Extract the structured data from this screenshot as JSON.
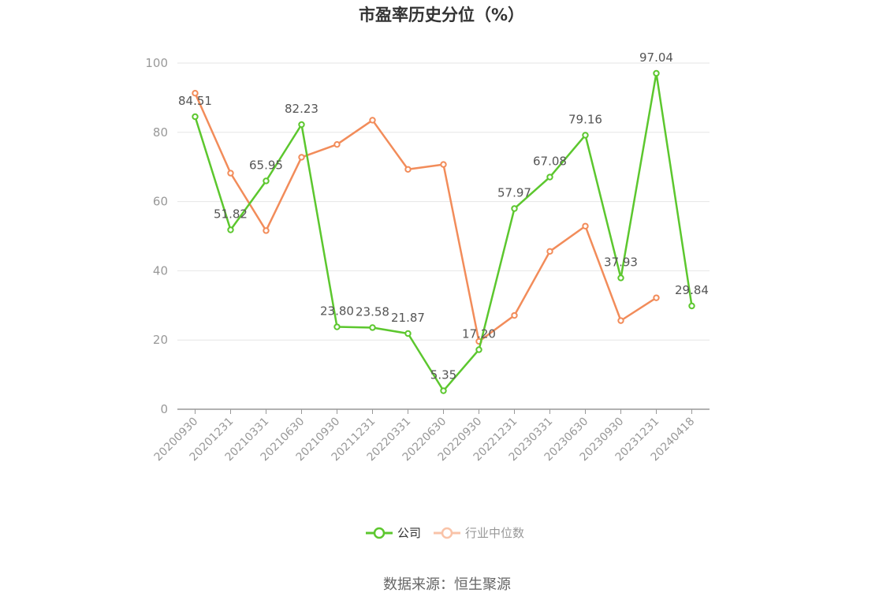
{
  "chart_data": {
    "type": "line",
    "title": "市盈率历史分位（%）",
    "categories": [
      "20200930",
      "20201231",
      "20210331",
      "20210630",
      "20210930",
      "20211231",
      "20220331",
      "20220630",
      "20220930",
      "20221231",
      "20230331",
      "20230630",
      "20230930",
      "20231231",
      "20240418"
    ],
    "series": [
      {
        "name": "公司",
        "color": "#5cc72e",
        "values": [
          84.51,
          51.82,
          65.95,
          82.23,
          23.8,
          23.58,
          21.87,
          5.35,
          17.2,
          57.97,
          67.08,
          79.16,
          37.93,
          97.04,
          29.84
        ],
        "labels": [
          "84.51",
          "51.82",
          "65.95",
          "82.23",
          "23.80",
          "23.58",
          "21.87",
          "5.35",
          "17.20",
          "57.97",
          "67.08",
          "79.16",
          "37.93",
          "97.04",
          "29.84"
        ]
      },
      {
        "name": "行业中位数",
        "color": "#f28c5a",
        "values": [
          91.3,
          68.2,
          51.6,
          72.8,
          76.5,
          83.5,
          69.3,
          70.7,
          19.6,
          27.1,
          45.6,
          52.9,
          25.6,
          32.2,
          null
        ]
      }
    ],
    "yticks": [
      "0",
      "20",
      "40",
      "60",
      "80",
      "100"
    ],
    "ylim": [
      0,
      100
    ],
    "grid": true,
    "legend": "bottom-center"
  },
  "source": "数据来源：恒生聚源"
}
